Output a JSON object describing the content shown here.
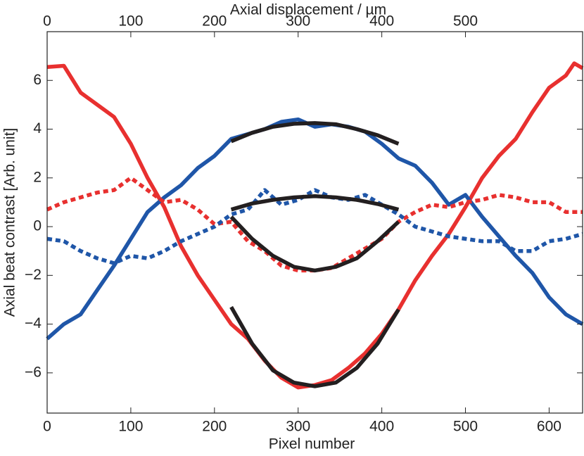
{
  "chart_data": {
    "type": "line",
    "xlabel": "Pixel number",
    "ylabel": "Axial beat contrast [Arb. unit]",
    "x2label": "Axial displacement  /  µm",
    "xlim": [
      0,
      640
    ],
    "xticks": [
      0,
      100,
      200,
      300,
      400,
      500,
      600
    ],
    "x2lim": [
      0,
      640
    ],
    "x2ticks": [
      0,
      100,
      200,
      300,
      400,
      500
    ],
    "ylim": [
      -7.65,
      8.0
    ],
    "yticks": [
      {
        "value": -6,
        "label": "−6"
      },
      {
        "value": -4,
        "label": "−4"
      },
      {
        "value": -2,
        "label": "−2"
      },
      0,
      2,
      4,
      6
    ],
    "series": [
      {
        "color": "#e8302f",
        "dash": false,
        "x": [
          0,
          20,
          40,
          60,
          80,
          100,
          120,
          140,
          160,
          180,
          200,
          220,
          240,
          260,
          280,
          300,
          320,
          340,
          360,
          380,
          400,
          420,
          440,
          460,
          480,
          500,
          520,
          540,
          560,
          580,
          600,
          620,
          630,
          640
        ],
        "values": [
          6.55,
          6.6,
          5.5,
          5.0,
          4.5,
          3.4,
          2.0,
          0.8,
          -0.8,
          -2.0,
          -3.0,
          -4.0,
          -4.6,
          -5.5,
          -6.2,
          -6.6,
          -6.5,
          -6.3,
          -5.8,
          -5.2,
          -4.4,
          -3.4,
          -2.2,
          -1.2,
          -0.3,
          0.8,
          2.0,
          2.9,
          3.6,
          4.7,
          5.7,
          6.2,
          6.7,
          6.5
        ]
      },
      {
        "color": "#1f56a8",
        "dash": false,
        "x": [
          0,
          20,
          40,
          60,
          80,
          100,
          120,
          140,
          160,
          180,
          200,
          220,
          240,
          260,
          280,
          300,
          320,
          340,
          360,
          380,
          400,
          420,
          440,
          460,
          480,
          500,
          520,
          540,
          560,
          580,
          600,
          620,
          640
        ],
        "values": [
          -4.6,
          -4.0,
          -3.6,
          -2.6,
          -1.6,
          -0.5,
          0.6,
          1.2,
          1.7,
          2.4,
          2.9,
          3.6,
          3.8,
          4.0,
          4.3,
          4.4,
          4.1,
          4.2,
          4.1,
          3.9,
          3.4,
          2.8,
          2.5,
          1.8,
          0.9,
          1.3,
          0.4,
          -0.4,
          -1.2,
          -1.9,
          -2.9,
          -3.6,
          -4.0
        ]
      },
      {
        "color": "#e8302f",
        "dash": true,
        "x": [
          0,
          20,
          40,
          60,
          80,
          100,
          120,
          140,
          160,
          180,
          200,
          220,
          240,
          260,
          280,
          300,
          320,
          340,
          360,
          380,
          400,
          420,
          440,
          460,
          480,
          500,
          520,
          540,
          560,
          580,
          600,
          620,
          640
        ],
        "values": [
          0.7,
          1.0,
          1.2,
          1.4,
          1.5,
          2.0,
          1.5,
          1.0,
          1.1,
          0.7,
          0.1,
          0.2,
          -0.6,
          -1.0,
          -1.6,
          -1.8,
          -1.8,
          -1.7,
          -1.3,
          -0.9,
          -0.5,
          0.2,
          0.6,
          0.9,
          0.8,
          1.0,
          1.1,
          1.3,
          1.2,
          1.0,
          1.0,
          0.6,
          0.6
        ]
      },
      {
        "color": "#1f56a8",
        "dash": true,
        "x": [
          0,
          20,
          40,
          60,
          80,
          100,
          120,
          140,
          160,
          180,
          200,
          220,
          240,
          260,
          280,
          300,
          320,
          340,
          360,
          380,
          400,
          420,
          440,
          460,
          480,
          500,
          520,
          540,
          560,
          580,
          600,
          620,
          640
        ],
        "values": [
          -0.5,
          -0.6,
          -1.0,
          -1.3,
          -1.5,
          -1.2,
          -1.3,
          -1.0,
          -0.6,
          -0.3,
          0.0,
          0.5,
          0.7,
          1.5,
          0.9,
          1.1,
          1.5,
          1.2,
          1.1,
          1.3,
          0.9,
          0.5,
          0.0,
          -0.2,
          -0.4,
          -0.5,
          -0.6,
          -0.6,
          -1.0,
          -1.0,
          -0.6,
          -0.5,
          -0.3
        ]
      },
      {
        "color": "#231f20",
        "dash": false,
        "x": [
          220,
          245,
          270,
          295,
          320,
          345,
          370,
          395,
          420
        ],
        "values": [
          3.5,
          3.85,
          4.1,
          4.22,
          4.25,
          4.2,
          4.0,
          3.75,
          3.4
        ]
      },
      {
        "color": "#231f20",
        "dash": false,
        "x": [
          220,
          245,
          270,
          295,
          320,
          345,
          370,
          395,
          420
        ],
        "values": [
          0.7,
          0.95,
          1.1,
          1.2,
          1.25,
          1.2,
          1.1,
          0.93,
          0.7
        ]
      },
      {
        "color": "#231f20",
        "dash": false,
        "x": [
          220,
          245,
          270,
          295,
          320,
          345,
          370,
          395,
          420
        ],
        "values": [
          0.4,
          -0.5,
          -1.2,
          -1.65,
          -1.8,
          -1.65,
          -1.3,
          -0.6,
          0.2
        ]
      },
      {
        "color": "#231f20",
        "dash": false,
        "x": [
          220,
          245,
          270,
          295,
          320,
          345,
          370,
          395,
          420
        ],
        "values": [
          -3.3,
          -4.8,
          -5.9,
          -6.4,
          -6.55,
          -6.4,
          -5.8,
          -4.8,
          -3.4
        ]
      }
    ]
  }
}
